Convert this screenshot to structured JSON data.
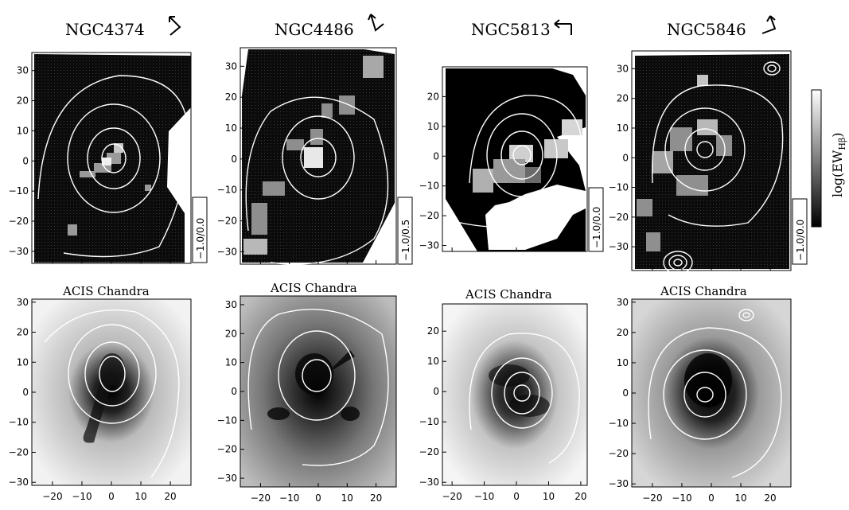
{
  "figure": {
    "top_row": [
      {
        "title": "NGC4374",
        "range_label": "−1.0/0.0",
        "arrow": "north-east-arrow-icon"
      },
      {
        "title": "NGC4486",
        "range_label": "−1.0/0.5",
        "arrow": "north-east-arrow-icon"
      },
      {
        "title": "NGC5813",
        "range_label": "−1.0/0.0",
        "arrow": "north-east-arrow-icon"
      },
      {
        "title": "NGC5846",
        "range_label": "−1.0/0.0",
        "arrow": "north-east-arrow-icon"
      }
    ],
    "bottom_row": [
      {
        "subtitle": "ACIS Chandra"
      },
      {
        "subtitle": "ACIS Chandra"
      },
      {
        "subtitle": "ACIS Chandra"
      },
      {
        "subtitle": "ACIS Chandra"
      }
    ],
    "colorbar_label": "log(EW",
    "colorbar_subscript": "Hβ",
    "colorbar_close": ")"
  },
  "chart_data": [
    {
      "type": "heatmap",
      "title": "NGC4374",
      "range_label": "−1.0/0.0",
      "xticks": [
        -20,
        -10,
        0,
        10,
        20
      ],
      "yticks": [
        -30,
        -20,
        -10,
        0,
        10,
        20,
        30
      ],
      "xlim": [
        -27,
        27
      ],
      "ylim": [
        -34,
        36
      ]
    },
    {
      "type": "heatmap",
      "title": "NGC4486",
      "range_label": "−1.0/0.5",
      "xticks": [
        -20,
        -10,
        0,
        10,
        20
      ],
      "yticks": [
        -30,
        -20,
        -10,
        0,
        10,
        20,
        30
      ],
      "xlim": [
        -27,
        27
      ],
      "ylim": [
        -34,
        36
      ]
    },
    {
      "type": "heatmap",
      "title": "NGC5813",
      "range_label": "−1.0/0.0",
      "xticks": [
        -20,
        -10,
        0,
        10,
        20
      ],
      "yticks": [
        -30,
        -20,
        -10,
        0,
        10,
        20
      ],
      "xlim": [
        -23,
        22
      ],
      "ylim": [
        -32,
        30
      ]
    },
    {
      "type": "heatmap",
      "title": "NGC5846",
      "range_label": "−1.0/0.0",
      "xticks": [
        -20,
        -10,
        0,
        10,
        20
      ],
      "yticks": [
        -30,
        -20,
        -10,
        0,
        10,
        20,
        30
      ],
      "xlim": [
        -27,
        27
      ],
      "ylim": [
        -38,
        36
      ]
    },
    {
      "type": "heatmap",
      "title": "ACIS Chandra",
      "xticks": [
        -20,
        -10,
        0,
        10,
        20
      ],
      "yticks": [
        -30,
        -20,
        -10,
        0,
        10,
        20,
        30
      ],
      "xlim": [
        -27,
        27
      ],
      "ylim": [
        -31,
        31
      ]
    },
    {
      "type": "heatmap",
      "title": "ACIS Chandra",
      "xticks": [
        -20,
        -10,
        0,
        10,
        20
      ],
      "yticks": [
        -30,
        -20,
        -10,
        0,
        10,
        20,
        30
      ],
      "xlim": [
        -27,
        27
      ],
      "ylim": [
        -33,
        33
      ]
    },
    {
      "type": "heatmap",
      "title": "ACIS Chandra",
      "xticks": [
        -20,
        -10,
        0,
        10,
        20
      ],
      "yticks": [
        -30,
        -20,
        -10,
        0,
        10,
        20
      ],
      "xlim": [
        -23,
        22
      ],
      "ylim": [
        -31,
        29
      ]
    },
    {
      "type": "heatmap",
      "title": "ACIS Chandra",
      "xticks": [
        -20,
        -10,
        0,
        10,
        20
      ],
      "yticks": [
        -30,
        -20,
        -10,
        0,
        10,
        20,
        30
      ],
      "xlim": [
        -27,
        27
      ],
      "ylim": [
        -31,
        31
      ]
    }
  ]
}
